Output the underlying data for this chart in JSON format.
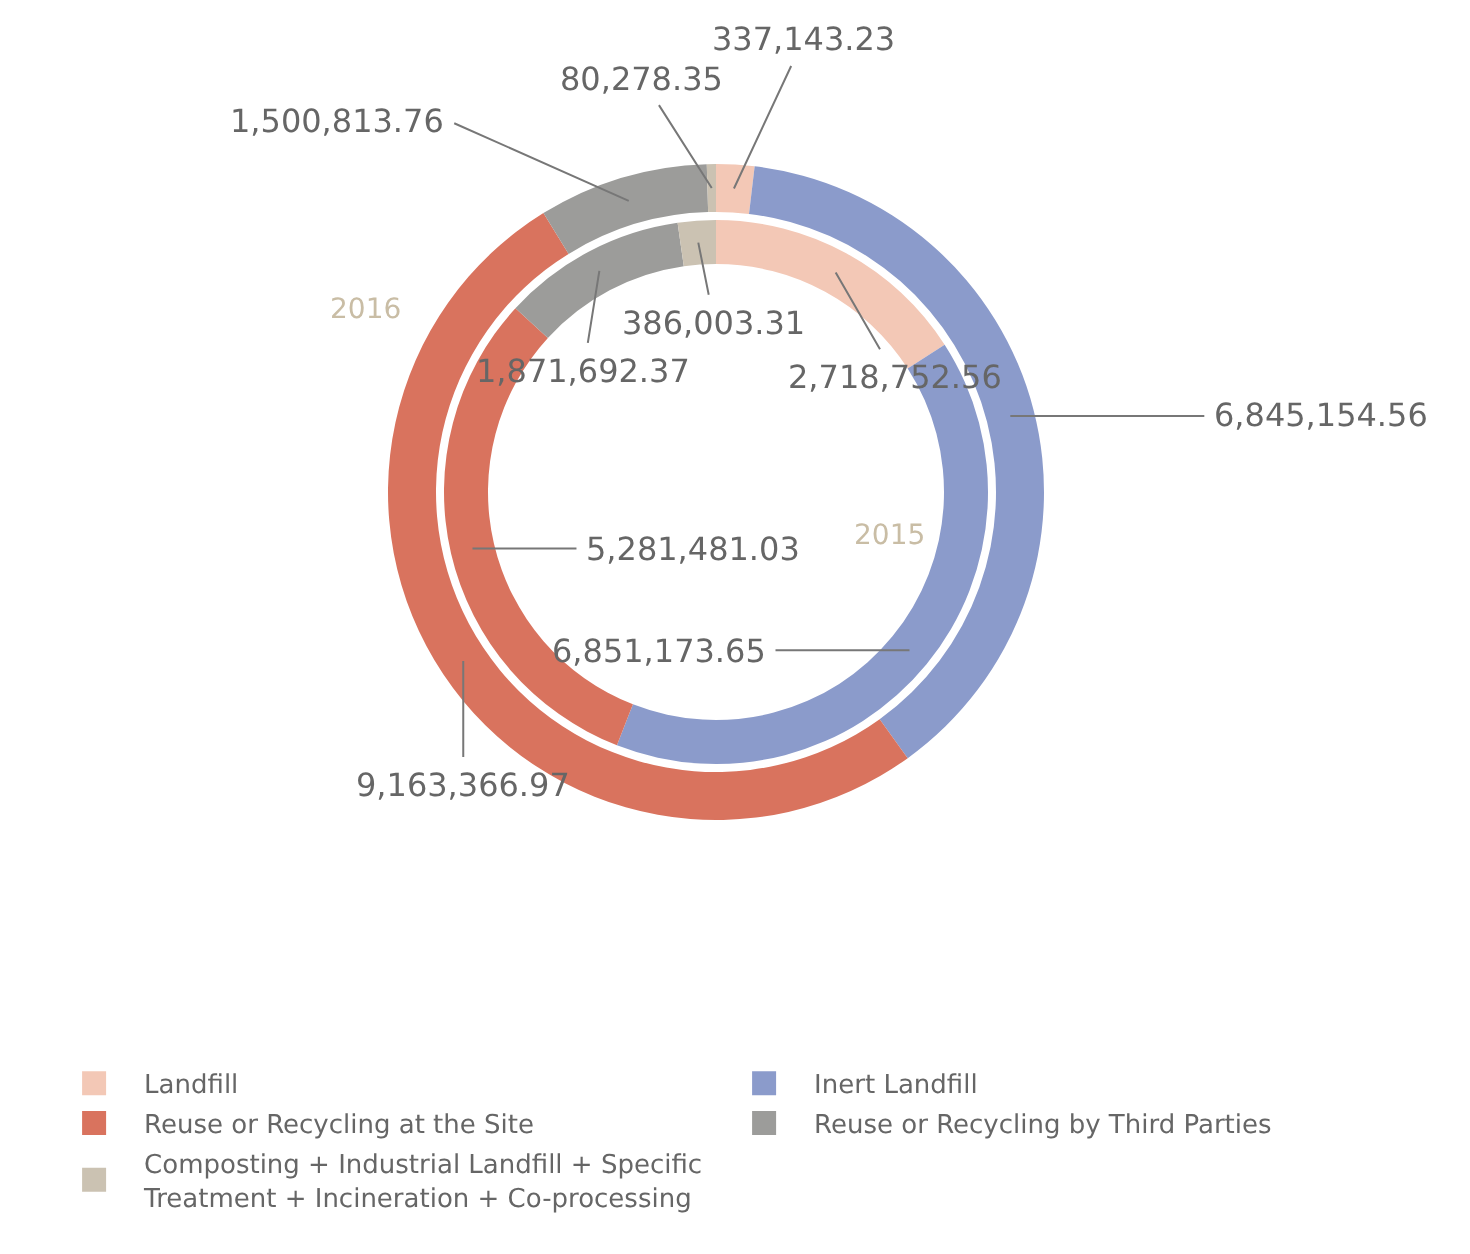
{
  "chart_data": {
    "type": "donut",
    "categories": [
      "Landfill",
      "Inert Landfill",
      "Reuse or Recycling at the Site",
      "Reuse or Recycling by Third Parties",
      "Composting + Industrial Landfill + Specific Treatment + Incineration + Co-processing"
    ],
    "colors": [
      "#f3c8b6",
      "#8b9bcb",
      "#d9735e",
      "#9c9c9a",
      "#cbc2b2"
    ],
    "series": [
      {
        "name": "2016",
        "values": [
          337143.23,
          6845154.56,
          9163366.97,
          1500813.76,
          80278.35
        ],
        "value_labels": [
          "337,143.23",
          "6,845,154.56",
          "9,163,366.97",
          "1,500,813.76",
          "80,278.35"
        ]
      },
      {
        "name": "2015",
        "values": [
          2718752.56,
          6851173.65,
          5281481.03,
          1871692.37,
          386003.31
        ],
        "value_labels": [
          "2,718,752.56",
          "6,851,173.65",
          "5,281,481.03",
          "1,871,692.37",
          "386,003.31"
        ]
      }
    ],
    "data_labels": true,
    "legend": "bottom"
  }
}
